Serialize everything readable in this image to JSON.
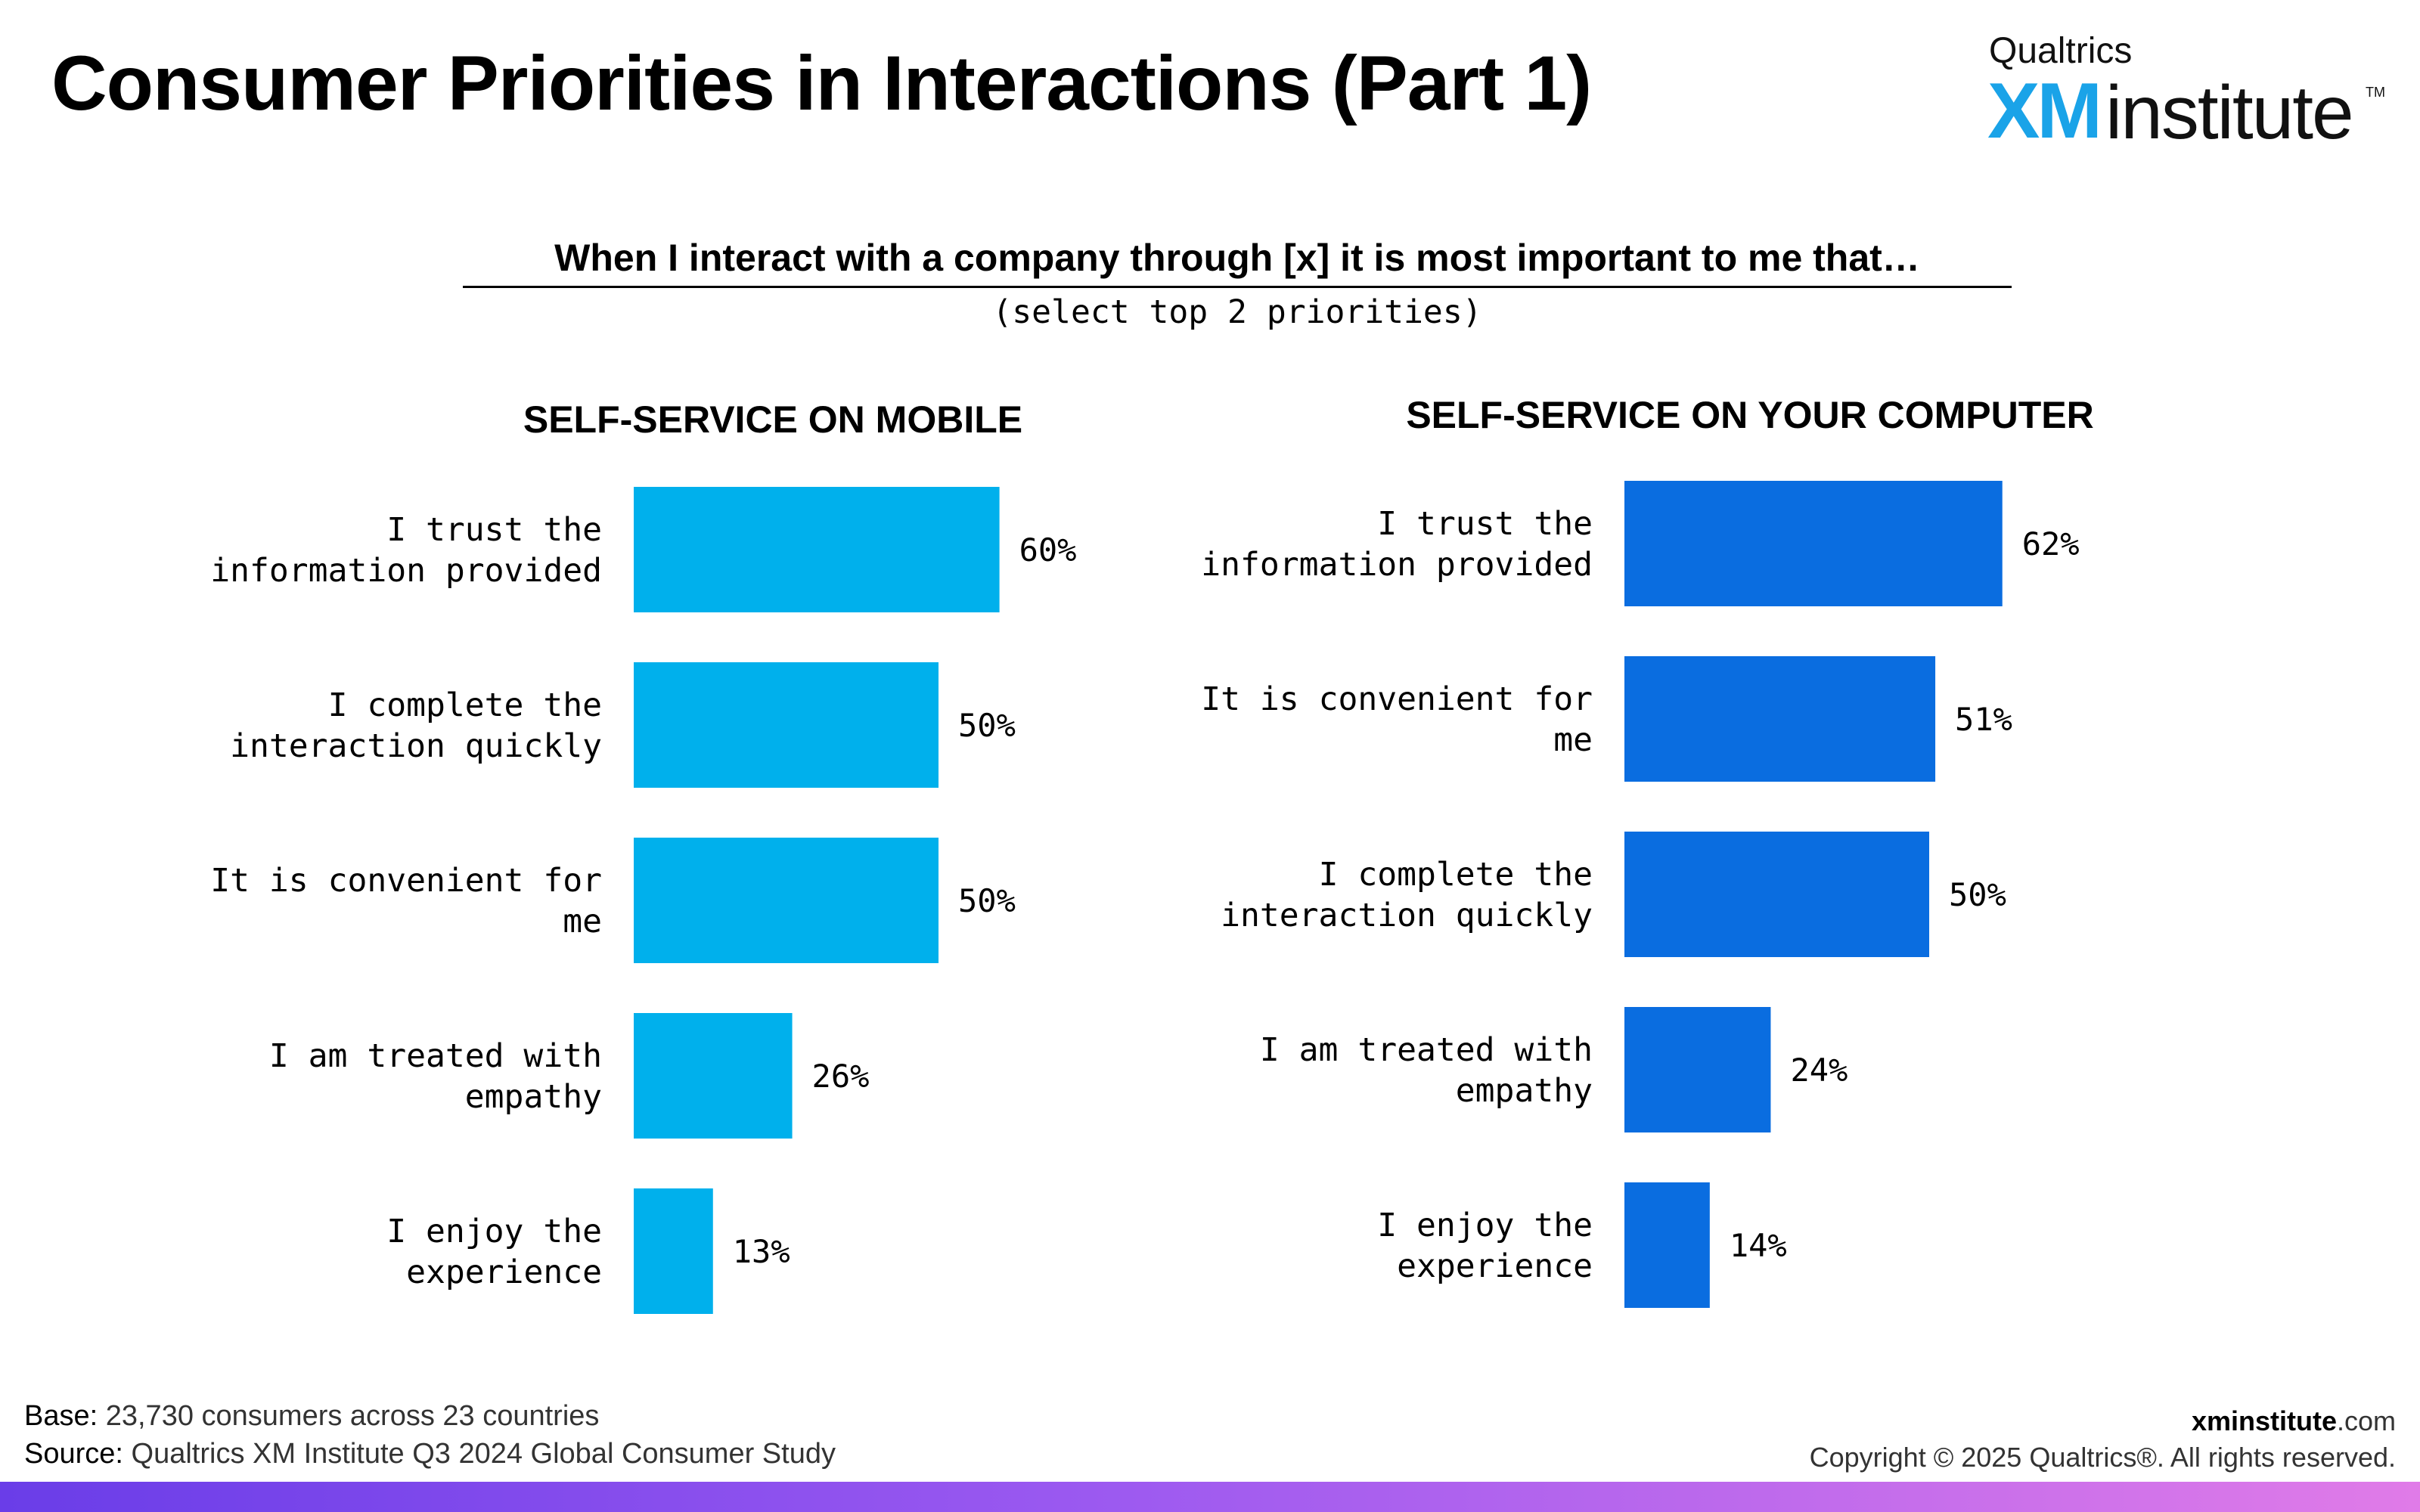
{
  "page": {
    "title": "Consumer Priorities in Interactions (Part 1)",
    "question": "When I interact with a company through [x] it is most important to me that…",
    "question_sub": "(select top 2 priorities)"
  },
  "logo": {
    "top": "Qualtrics",
    "xm": "XM",
    "institute": "institute",
    "tm": "TM"
  },
  "footer": {
    "base_label": "Base:",
    "base_text": "23,730 consumers across 23 countries",
    "source_label": "Source:",
    "source_text": "Qualtrics XM Institute Q3 2024 Global Consumer Study",
    "site_bold": "xminstitute",
    "site_rest": ".com",
    "copyright": "Copyright © 2025 Qualtrics®. All rights reserved."
  },
  "chart_data": [
    {
      "type": "bar",
      "orientation": "horizontal",
      "title": "SELF-SERVICE ON MOBILE",
      "categories": [
        "I trust the information provided",
        "I complete the interaction quickly",
        "It is convenient for me",
        "I am treated with empathy",
        "I enjoy the experience"
      ],
      "category_lines": [
        [
          "I trust the",
          "information provided"
        ],
        [
          "I complete the",
          "interaction quickly"
        ],
        [
          "It is convenient for",
          "me"
        ],
        [
          "I am treated with",
          "empathy"
        ],
        [
          "I enjoy the",
          "experience"
        ]
      ],
      "values": [
        60,
        50,
        50,
        26,
        13
      ],
      "value_labels": [
        "60%",
        "50%",
        "50%",
        "26%",
        "13%"
      ],
      "unit": "%",
      "xlim": [
        0,
        100
      ],
      "color": "#00b0ec",
      "grid": false,
      "legend": "none"
    },
    {
      "type": "bar",
      "orientation": "horizontal",
      "title": "SELF-SERVICE ON YOUR COMPUTER",
      "categories": [
        "I trust the information provided",
        "It is convenient for me",
        "I complete the interaction quickly",
        "I am treated with empathy",
        "I enjoy the experience"
      ],
      "category_lines": [
        [
          "I trust the",
          "information provided"
        ],
        [
          "It is convenient for",
          "me"
        ],
        [
          "I complete the",
          "interaction quickly"
        ],
        [
          "I am treated with",
          "empathy"
        ],
        [
          "I enjoy the",
          "experience"
        ]
      ],
      "values": [
        62,
        51,
        50,
        24,
        14
      ],
      "value_labels": [
        "62%",
        "51%",
        "50%",
        "24%",
        "14%"
      ],
      "unit": "%",
      "xlim": [
        0,
        100
      ],
      "color": "#0a6de0",
      "grid": false,
      "legend": "none"
    }
  ]
}
